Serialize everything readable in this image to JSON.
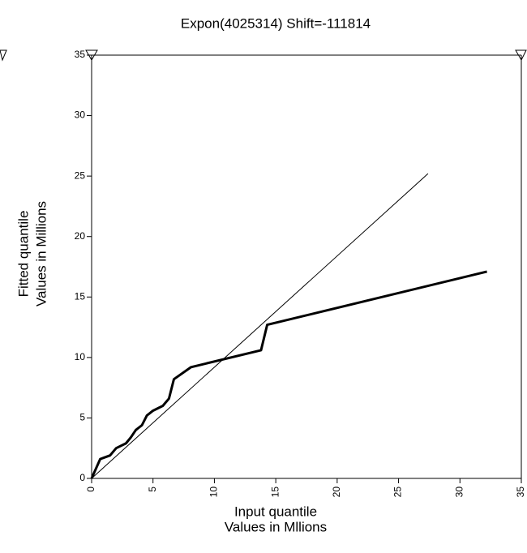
{
  "chart_data": {
    "type": "line",
    "title": "Expon(4025314) Shift=-111814",
    "x_label": [
      "Input quantile",
      "Values in Mllions"
    ],
    "y_label": [
      "Fitted quantile",
      "Values in Millions"
    ],
    "xlim": [
      0,
      35
    ],
    "ylim": [
      0,
      35
    ],
    "xticks": [
      0,
      5,
      10,
      15,
      20,
      25,
      30,
      35
    ],
    "yticks": [
      0,
      5,
      10,
      15,
      20,
      25,
      30,
      35
    ],
    "series": [
      {
        "color": "#000000",
        "width": 1,
        "x": [
          0,
          27.4
        ],
        "values": [
          0,
          25.2
        ]
      },
      {
        "color": "#000000",
        "width": 3,
        "x": [
          0,
          0.7,
          1.5,
          2,
          2.8,
          3.2,
          3.6,
          4.1,
          4.5,
          5.0,
          5.8,
          6.3,
          6.7,
          8.1,
          13.8,
          14.3,
          32.2
        ],
        "values": [
          0,
          1.6,
          1.9,
          2.5,
          2.9,
          3.4,
          4.0,
          4.4,
          5.2,
          5.6,
          6.0,
          6.6,
          8.2,
          9.2,
          10.6,
          12.7,
          17.1
        ]
      }
    ]
  }
}
